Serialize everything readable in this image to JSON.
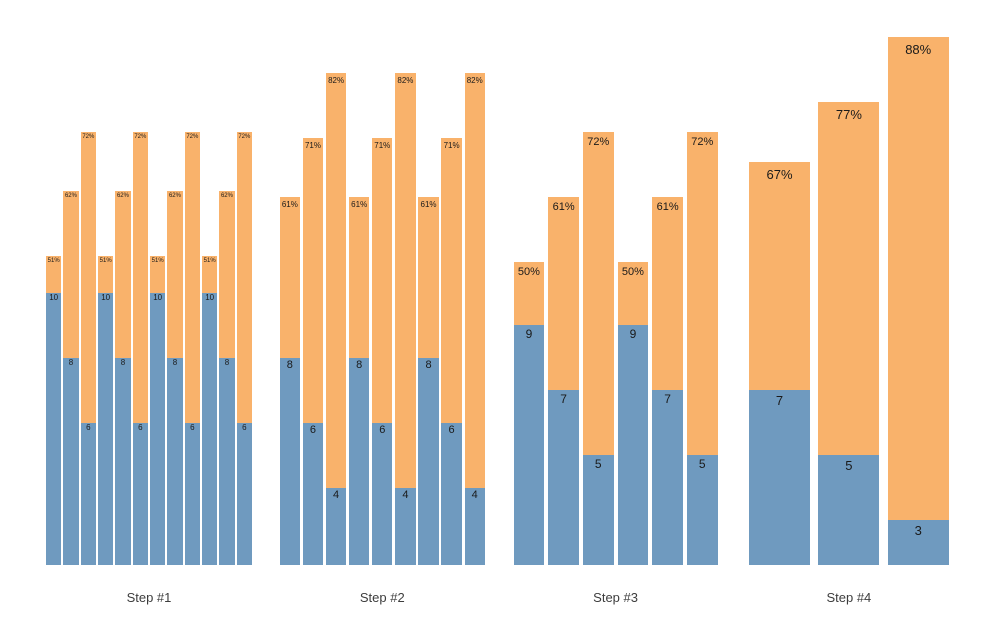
{
  "chart_data": {
    "type": "bar",
    "subtype": "grouped-stacked-percentage",
    "title": "",
    "xlabel": "",
    "ylabel": "",
    "legend": "none",
    "grid": false,
    "axes_visible": false,
    "background_color": "#ffffff",
    "colors": {
      "value_segment_blue": "#6f9abf",
      "pct_segment_orange": "#f9b26b",
      "bar_label_text": "#1a1a1a",
      "group_label_text": "#3d3d3d"
    },
    "groups": [
      {
        "label": "Step #1",
        "bars": [
          {
            "value": 10,
            "pct": 51,
            "pct_label": "51%"
          },
          {
            "value": 8,
            "pct": 62,
            "pct_label": "62%"
          },
          {
            "value": 6,
            "pct": 72,
            "pct_label": "72%"
          },
          {
            "value": 10,
            "pct": 51,
            "pct_label": "51%"
          },
          {
            "value": 8,
            "pct": 62,
            "pct_label": "62%"
          },
          {
            "value": 6,
            "pct": 72,
            "pct_label": "72%"
          },
          {
            "value": 10,
            "pct": 51,
            "pct_label": "51%"
          },
          {
            "value": 8,
            "pct": 62,
            "pct_label": "62%"
          },
          {
            "value": 6,
            "pct": 72,
            "pct_label": "72%"
          },
          {
            "value": 10,
            "pct": 51,
            "pct_label": "51%"
          },
          {
            "value": 8,
            "pct": 62,
            "pct_label": "62%"
          },
          {
            "value": 6,
            "pct": 72,
            "pct_label": "72%"
          }
        ]
      },
      {
        "label": "Step #2",
        "bars": [
          {
            "value": 8,
            "pct": 61,
            "pct_label": "61%"
          },
          {
            "value": 6,
            "pct": 71,
            "pct_label": "71%"
          },
          {
            "value": 4,
            "pct": 82,
            "pct_label": "82%"
          },
          {
            "value": 8,
            "pct": 61,
            "pct_label": "61%"
          },
          {
            "value": 6,
            "pct": 71,
            "pct_label": "71%"
          },
          {
            "value": 4,
            "pct": 82,
            "pct_label": "82%"
          },
          {
            "value": 8,
            "pct": 61,
            "pct_label": "61%"
          },
          {
            "value": 6,
            "pct": 71,
            "pct_label": "71%"
          },
          {
            "value": 4,
            "pct": 82,
            "pct_label": "82%"
          }
        ]
      },
      {
        "label": "Step #3",
        "bars": [
          {
            "value": 9,
            "pct": 50,
            "pct_label": "50%"
          },
          {
            "value": 7,
            "pct": 61,
            "pct_label": "61%"
          },
          {
            "value": 5,
            "pct": 72,
            "pct_label": "72%"
          },
          {
            "value": 9,
            "pct": 50,
            "pct_label": "50%"
          },
          {
            "value": 7,
            "pct": 61,
            "pct_label": "61%"
          },
          {
            "value": 5,
            "pct": 72,
            "pct_label": "72%"
          }
        ]
      },
      {
        "label": "Step #4",
        "bars": [
          {
            "value": 7,
            "pct": 67,
            "pct_label": "67%"
          },
          {
            "value": 5,
            "pct": 77,
            "pct_label": "77%"
          },
          {
            "value": 3,
            "pct": 88,
            "pct_label": "88%"
          }
        ]
      }
    ]
  }
}
